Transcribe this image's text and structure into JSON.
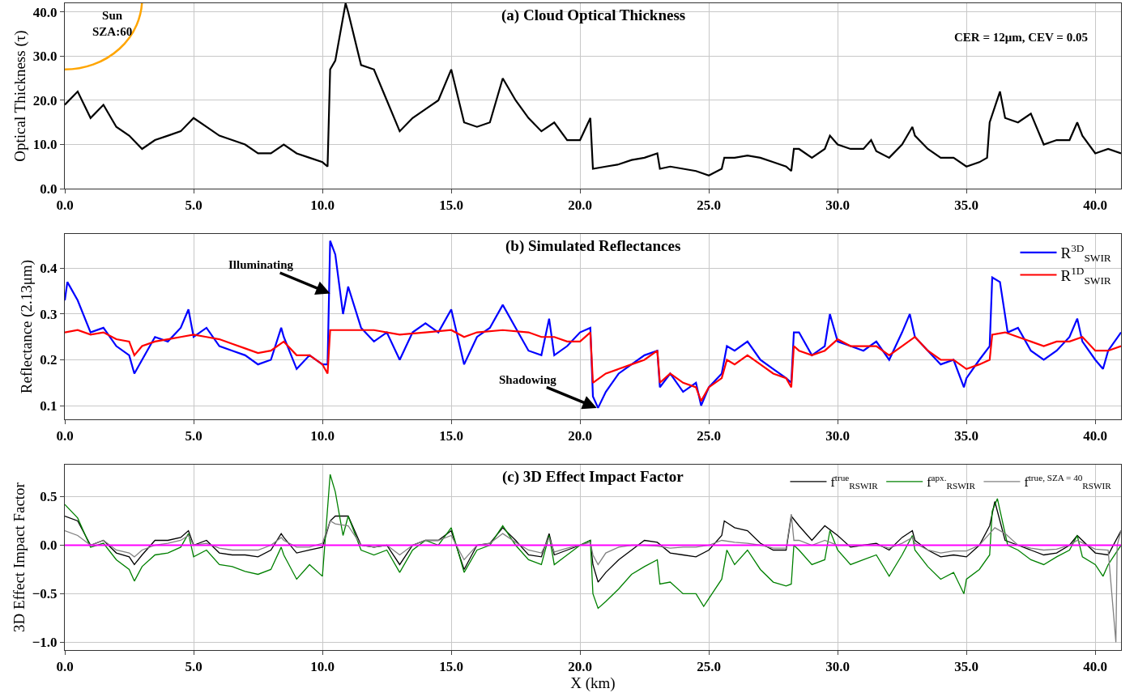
{
  "chart_data": [
    {
      "type": "line",
      "title": "(a) Cloud Optical Thickness",
      "ylabel": "Optical Thickness (τ)",
      "annotations": [
        "Sun\nSZA:60",
        "CER = 12μm, CEV = 0.05"
      ],
      "grid": true,
      "xlim": [
        0,
        41
      ],
      "xticks": [
        {
          "value": 0,
          "label": "0.0"
        },
        {
          "value": 5,
          "label": "5.0"
        },
        {
          "value": 10,
          "label": "10.0"
        },
        {
          "value": 15,
          "label": "15.0"
        },
        {
          "value": 20,
          "label": "20.0"
        },
        {
          "value": 25,
          "label": "25.0"
        },
        {
          "value": 30,
          "label": "30.0"
        },
        {
          "value": 35,
          "label": "35.0"
        },
        {
          "value": 40,
          "label": "40.0"
        }
      ],
      "ylim": [
        0,
        42
      ],
      "yticks": [
        {
          "value": 0,
          "label": "0.0"
        },
        {
          "value": 10,
          "label": "10.0"
        },
        {
          "value": 20,
          "label": "20.0"
        },
        {
          "value": 30,
          "label": "30.0"
        },
        {
          "value": 40,
          "label": "40.0"
        }
      ],
      "series": [
        {
          "color": "#000000",
          "x": [
            0,
            0.5,
            1,
            1.5,
            2,
            2.5,
            3,
            3.5,
            4,
            4.5,
            5,
            5.5,
            6,
            6.5,
            7,
            7.5,
            8,
            8.5,
            9,
            9.5,
            10,
            10.2,
            10.3,
            10.5,
            10.9,
            11,
            11.5,
            12,
            12.5,
            13,
            13.5,
            14,
            14.5,
            15,
            15.5,
            16,
            16.5,
            17,
            17.5,
            18,
            18.5,
            19,
            19.5,
            20,
            20.4,
            20.5,
            21,
            21.5,
            22,
            22.5,
            23,
            23.1,
            23.5,
            24,
            24.5,
            25,
            25.5,
            25.6,
            26,
            26.5,
            27,
            27.5,
            28,
            28.2,
            28.3,
            28.5,
            29,
            29.5,
            29.7,
            30,
            30.5,
            31,
            31.3,
            31.5,
            32,
            32.5,
            32.9,
            33,
            33.5,
            34,
            34.5,
            35,
            35.5,
            35.8,
            35.9,
            36.3,
            36.5,
            37,
            37.5,
            38,
            38.5,
            39,
            39.3,
            39.5,
            40,
            40.5,
            41
          ],
          "values": [
            19,
            22,
            16,
            19,
            14,
            12,
            9,
            11,
            12,
            13,
            16,
            14,
            12,
            11,
            10,
            8,
            8,
            10,
            8,
            7,
            6,
            5,
            27,
            29,
            42,
            40,
            28,
            27,
            20,
            13,
            16,
            18,
            20,
            27,
            15,
            14,
            15,
            25,
            20,
            16,
            13,
            15,
            11,
            11,
            16,
            4.5,
            5,
            5.5,
            6.5,
            7,
            8,
            4.5,
            5,
            4.5,
            4,
            3,
            4.5,
            7,
            7,
            7.5,
            7,
            6,
            5,
            4,
            9,
            9,
            7,
            9,
            12,
            10,
            9,
            9,
            11,
            8.5,
            7,
            10,
            14,
            12,
            9,
            7,
            7,
            5,
            6,
            7,
            15,
            22,
            16,
            15,
            17,
            10,
            11,
            11,
            15,
            12,
            8,
            9,
            8
          ]
        }
      ]
    },
    {
      "type": "line",
      "title": "(b) Simulated Reflectances",
      "ylabel": "Reflectance (2.13μm)",
      "legend": "top right",
      "grid": true,
      "annotations": [
        {
          "text": "Illuminating",
          "x": 10.3,
          "y": 0.345
        },
        {
          "text": "Shadowing",
          "x": 20.65,
          "y": 0.095
        }
      ],
      "xlim": [
        0,
        41
      ],
      "xticks": [
        {
          "value": 0,
          "label": "0.0"
        },
        {
          "value": 5,
          "label": "5.0"
        },
        {
          "value": 10,
          "label": "10.0"
        },
        {
          "value": 15,
          "label": "15.0"
        },
        {
          "value": 20,
          "label": "20.0"
        },
        {
          "value": 25,
          "label": "25.0"
        },
        {
          "value": 30,
          "label": "30.0"
        },
        {
          "value": 35,
          "label": "35.0"
        },
        {
          "value": 40,
          "label": "40.0"
        }
      ],
      "ylim": [
        0.07,
        0.475
      ],
      "yticks": [
        0.1,
        0.2,
        0.3,
        0.4
      ],
      "series": [
        {
          "name": "R$^{3D}$$_{SWIR}$",
          "color": "#0000ff",
          "x": [
            0,
            0.1,
            0.5,
            1,
            1.5,
            2,
            2.5,
            2.7,
            3,
            3.5,
            4,
            4.5,
            4.8,
            5,
            5.5,
            6,
            6.5,
            7,
            7.5,
            8,
            8.4,
            8.5,
            9,
            9.5,
            10,
            10.2,
            10.3,
            10.5,
            10.8,
            11,
            11.5,
            12,
            12.5,
            13,
            13.5,
            14,
            14.5,
            15,
            15.5,
            16,
            16.5,
            17,
            17.5,
            18,
            18.5,
            18.8,
            19,
            19.5,
            20,
            20.4,
            20.5,
            20.7,
            21,
            21.5,
            22,
            22.5,
            23,
            23.1,
            23.5,
            24,
            24.5,
            24.7,
            25,
            25.5,
            25.7,
            26,
            26.5,
            27,
            27.5,
            28,
            28.2,
            28.3,
            28.5,
            29,
            29.5,
            29.7,
            30,
            30.5,
            31,
            31.5,
            32,
            32.5,
            32.8,
            33,
            33.5,
            34,
            34.5,
            34.9,
            35,
            35.5,
            35.9,
            36,
            36.3,
            36.6,
            37,
            37.5,
            38,
            38.5,
            39,
            39.3,
            39.5,
            40,
            40.3,
            40.5,
            41
          ],
          "values": [
            0.33,
            0.37,
            0.33,
            0.26,
            0.27,
            0.23,
            0.21,
            0.17,
            0.2,
            0.25,
            0.24,
            0.27,
            0.31,
            0.25,
            0.27,
            0.23,
            0.22,
            0.21,
            0.19,
            0.2,
            0.27,
            0.25,
            0.18,
            0.21,
            0.19,
            0.19,
            0.46,
            0.43,
            0.3,
            0.36,
            0.27,
            0.24,
            0.26,
            0.2,
            0.26,
            0.28,
            0.26,
            0.31,
            0.19,
            0.25,
            0.27,
            0.32,
            0.27,
            0.22,
            0.21,
            0.29,
            0.21,
            0.23,
            0.26,
            0.27,
            0.12,
            0.095,
            0.13,
            0.17,
            0.19,
            0.21,
            0.22,
            0.14,
            0.17,
            0.13,
            0.15,
            0.1,
            0.14,
            0.17,
            0.23,
            0.22,
            0.24,
            0.2,
            0.18,
            0.16,
            0.15,
            0.26,
            0.26,
            0.21,
            0.23,
            0.3,
            0.24,
            0.23,
            0.22,
            0.24,
            0.2,
            0.26,
            0.3,
            0.25,
            0.22,
            0.19,
            0.2,
            0.14,
            0.16,
            0.2,
            0.23,
            0.38,
            0.37,
            0.26,
            0.27,
            0.22,
            0.2,
            0.22,
            0.25,
            0.29,
            0.24,
            0.2,
            0.18,
            0.22,
            0.26
          ]
        },
        {
          "name": "R$^{1D}$$_{SWIR}$",
          "color": "#ff0000",
          "x": [
            0,
            0.5,
            1,
            1.5,
            2,
            2.5,
            2.7,
            3,
            3.5,
            4,
            4.5,
            5,
            5.5,
            6,
            6.5,
            7,
            7.5,
            8,
            8.5,
            9,
            9.5,
            10,
            10.2,
            10.3,
            11,
            12,
            13,
            14,
            15,
            15.5,
            16,
            17,
            18,
            18.5,
            19,
            19.5,
            20,
            20.4,
            20.5,
            21,
            21.5,
            22,
            22.5,
            23,
            23.1,
            23.5,
            24,
            24.5,
            24.7,
            25,
            25.5,
            25.7,
            26,
            26.5,
            27,
            27.5,
            28,
            28.2,
            28.3,
            28.5,
            29,
            29.5,
            30,
            30.5,
            31,
            31.5,
            32,
            32.5,
            33,
            33.5,
            34,
            34.5,
            35,
            35.5,
            35.9,
            36,
            36.5,
            37,
            37.5,
            38,
            38.5,
            39,
            39.5,
            40,
            40.5,
            41
          ],
          "values": [
            0.26,
            0.265,
            0.255,
            0.26,
            0.245,
            0.24,
            0.21,
            0.23,
            0.24,
            0.245,
            0.25,
            0.255,
            0.25,
            0.245,
            0.235,
            0.225,
            0.215,
            0.22,
            0.24,
            0.21,
            0.21,
            0.19,
            0.17,
            0.265,
            0.265,
            0.265,
            0.255,
            0.26,
            0.265,
            0.25,
            0.26,
            0.265,
            0.26,
            0.25,
            0.25,
            0.24,
            0.24,
            0.26,
            0.15,
            0.17,
            0.18,
            0.19,
            0.2,
            0.22,
            0.15,
            0.17,
            0.15,
            0.14,
            0.11,
            0.14,
            0.16,
            0.2,
            0.19,
            0.21,
            0.19,
            0.17,
            0.16,
            0.14,
            0.23,
            0.22,
            0.21,
            0.22,
            0.245,
            0.23,
            0.23,
            0.23,
            0.21,
            0.23,
            0.25,
            0.22,
            0.2,
            0.2,
            0.18,
            0.19,
            0.2,
            0.255,
            0.26,
            0.25,
            0.24,
            0.23,
            0.24,
            0.24,
            0.25,
            0.22,
            0.22,
            0.23
          ]
        }
      ]
    },
    {
      "type": "line",
      "title": "(c) 3D Effect Impact Factor",
      "xlabel": "X (km)",
      "ylabel": "3D Effect Impact Factor",
      "legend": "top right",
      "grid": true,
      "ref_lines": [
        {
          "axis": "y",
          "value": 0,
          "color": "#ff00ff"
        }
      ],
      "xlim": [
        0,
        41
      ],
      "xticks": [
        {
          "value": 0,
          "label": "0.0"
        },
        {
          "value": 5,
          "label": "5.0"
        },
        {
          "value": 10,
          "label": "10.0"
        },
        {
          "value": 15,
          "label": "15.0"
        },
        {
          "value": 20,
          "label": "20.0"
        },
        {
          "value": 25,
          "label": "25.0"
        },
        {
          "value": 30,
          "label": "30.0"
        },
        {
          "value": 35,
          "label": "35.0"
        },
        {
          "value": 40,
          "label": "40.0"
        }
      ],
      "ylim": [
        -1.08,
        0.83
      ],
      "yticks": [
        {
          "value": -1,
          "label": "−1.0"
        },
        {
          "value": -0.5,
          "label": "−0.5"
        },
        {
          "value": 0,
          "label": "0.0"
        },
        {
          "value": 0.5,
          "label": "0.5"
        }
      ],
      "series": [
        {
          "name": "f$^{true}$$_{RSWIR}$",
          "color": "#000000",
          "x": [
            0,
            0.5,
            1,
            1.5,
            2,
            2.5,
            2.7,
            3,
            3.5,
            4,
            4.5,
            4.8,
            5,
            5.5,
            6,
            6.5,
            7,
            7.5,
            8,
            8.4,
            8.5,
            9,
            9.5,
            10,
            10.3,
            10.5,
            11,
            11.5,
            12,
            12.5,
            13,
            13.5,
            14,
            14.5,
            15,
            15.5,
            16,
            16.5,
            17,
            17.5,
            18,
            18.5,
            18.8,
            19,
            19.5,
            20,
            20.4,
            20.5,
            20.7,
            21,
            21.5,
            22,
            22.5,
            23,
            23.5,
            24,
            24.5,
            25,
            25.5,
            25.6,
            26,
            26.5,
            27,
            27.5,
            28,
            28.2,
            28.5,
            29,
            29.5,
            30,
            30.5,
            31,
            31.5,
            32,
            32.5,
            32.9,
            33,
            33.5,
            34,
            34.5,
            35,
            35.5,
            35.9,
            36.1,
            36.5,
            37,
            37.5,
            38,
            38.5,
            39,
            39.3,
            40,
            40.5,
            41
          ],
          "values": [
            0.3,
            0.25,
            0.0,
            0.05,
            -0.08,
            -0.12,
            -0.2,
            -0.1,
            0.05,
            0.05,
            0.08,
            0.15,
            0.0,
            0.05,
            -0.08,
            -0.1,
            -0.1,
            -0.12,
            -0.05,
            0.12,
            0.08,
            -0.08,
            -0.05,
            -0.02,
            0.25,
            0.3,
            0.3,
            0.0,
            -0.02,
            0.0,
            -0.2,
            0.0,
            0.05,
            0.05,
            0.15,
            -0.25,
            0.0,
            0.02,
            0.18,
            0.05,
            -0.1,
            -0.12,
            0.12,
            -0.1,
            -0.05,
            0.0,
            0.05,
            -0.2,
            -0.38,
            -0.28,
            -0.15,
            -0.05,
            0.05,
            0.03,
            -0.08,
            -0.1,
            -0.12,
            -0.05,
            0.1,
            0.25,
            0.18,
            0.15,
            0.02,
            -0.05,
            -0.05,
            0.3,
            0.2,
            0.05,
            0.2,
            0.1,
            -0.02,
            0.0,
            0.02,
            -0.05,
            0.08,
            0.15,
            0.05,
            -0.05,
            -0.12,
            -0.1,
            -0.12,
            0.0,
            0.2,
            0.45,
            0.05,
            0.0,
            -0.05,
            -0.1,
            -0.08,
            0.0,
            0.1,
            -0.08,
            -0.1,
            0.15
          ]
        },
        {
          "name": "f$^{apx.}$$_{RSWIR}$",
          "color": "#008000",
          "x": [
            0,
            0.5,
            1,
            1.5,
            2,
            2.5,
            2.7,
            3,
            3.5,
            4,
            4.5,
            4.8,
            5,
            5.5,
            6,
            6.5,
            7,
            7.5,
            8,
            8.4,
            8.5,
            9,
            9.5,
            10,
            10.3,
            10.5,
            10.8,
            11,
            11.5,
            12,
            12.5,
            13,
            13.5,
            14,
            14.5,
            15,
            15.5,
            16,
            16.5,
            17,
            17.5,
            18,
            18.5,
            18.8,
            19,
            19.5,
            20,
            20.4,
            20.5,
            20.7,
            21,
            21.5,
            22,
            22.5,
            23,
            23.1,
            23.5,
            24,
            24.5,
            24.8,
            25,
            25.5,
            25.7,
            26,
            26.5,
            27,
            27.5,
            28,
            28.2,
            28.3,
            28.5,
            29,
            29.5,
            29.7,
            30,
            30.5,
            31,
            31.5,
            32,
            32.5,
            32.9,
            33,
            33.5,
            34,
            34.5,
            34.9,
            35,
            35.5,
            35.9,
            36,
            36.2,
            36.6,
            37,
            37.5,
            38,
            38.5,
            39,
            39.3,
            39.5,
            40,
            40.3,
            40.5,
            41
          ],
          "values": [
            0.42,
            0.28,
            -0.02,
            0.02,
            -0.15,
            -0.25,
            -0.37,
            -0.22,
            -0.1,
            -0.08,
            -0.02,
            0.12,
            -0.12,
            -0.05,
            -0.2,
            -0.22,
            -0.27,
            -0.3,
            -0.25,
            -0.02,
            -0.1,
            -0.35,
            -0.2,
            -0.32,
            0.73,
            0.55,
            0.1,
            0.3,
            -0.05,
            -0.1,
            -0.05,
            -0.28,
            -0.05,
            0.05,
            0.0,
            0.18,
            -0.28,
            -0.05,
            0.0,
            0.2,
            0.0,
            -0.15,
            -0.2,
            0.1,
            -0.2,
            -0.1,
            0.0,
            0.05,
            -0.5,
            -0.65,
            -0.58,
            -0.45,
            -0.3,
            -0.22,
            -0.15,
            -0.4,
            -0.38,
            -0.5,
            -0.5,
            -0.63,
            -0.55,
            -0.35,
            -0.05,
            -0.2,
            -0.05,
            -0.25,
            -0.38,
            -0.42,
            -0.4,
            0.0,
            -0.05,
            -0.2,
            -0.15,
            0.15,
            -0.05,
            -0.2,
            -0.15,
            -0.1,
            -0.32,
            -0.1,
            0.1,
            -0.05,
            -0.22,
            -0.35,
            -0.28,
            -0.5,
            -0.35,
            -0.25,
            -0.1,
            0.35,
            0.48,
            0.0,
            -0.05,
            -0.15,
            -0.2,
            -0.12,
            -0.05,
            0.1,
            -0.12,
            -0.2,
            -0.32,
            -0.2,
            0.0
          ]
        },
        {
          "name": "f$^{true, SZA = 40}$$_{RSWIR}$",
          "color": "#808080",
          "x": [
            0,
            0.5,
            1,
            1.5,
            2,
            2.5,
            2.7,
            3,
            3.5,
            4,
            4.5,
            4.8,
            5,
            5.5,
            6,
            6.5,
            7,
            7.5,
            8,
            8.4,
            8.5,
            9,
            9.5,
            10,
            10.3,
            10.5,
            11,
            11.5,
            12,
            12.5,
            13,
            13.5,
            14,
            14.5,
            15,
            15.5,
            16,
            16.5,
            17,
            17.5,
            18,
            18.5,
            18.8,
            19,
            19.5,
            20,
            20.4,
            20.5,
            20.7,
            21,
            21.5,
            22,
            22.5,
            23,
            23.5,
            24,
            24.5,
            25,
            25.5,
            26,
            26.5,
            27,
            27.5,
            28,
            28.2,
            28.3,
            28.5,
            29,
            29.5,
            30,
            30.5,
            31,
            31.5,
            32,
            32.5,
            32.9,
            33,
            33.5,
            34,
            34.5,
            35,
            35.5,
            35.9,
            36.1,
            36.5,
            37,
            37.5,
            38,
            38.5,
            39,
            39.3,
            40,
            40.5,
            40.8,
            40.85,
            41
          ],
          "values": [
            0.15,
            0.1,
            0.0,
            0.05,
            -0.05,
            -0.08,
            -0.12,
            -0.05,
            0.0,
            0.02,
            0.05,
            0.1,
            0.0,
            0.02,
            -0.03,
            -0.05,
            -0.05,
            -0.05,
            0.0,
            0.08,
            0.05,
            -0.02,
            -0.02,
            0.02,
            0.25,
            0.22,
            0.2,
            0.0,
            -0.02,
            0.0,
            -0.1,
            0.0,
            0.05,
            0.05,
            0.1,
            -0.15,
            0.0,
            0.02,
            0.12,
            0.03,
            -0.05,
            -0.08,
            0.08,
            -0.07,
            -0.03,
            0.0,
            0.03,
            -0.1,
            -0.2,
            -0.08,
            -0.02,
            0.0,
            0.0,
            -0.01,
            -0.03,
            -0.02,
            -0.02,
            0.0,
            0.05,
            0.03,
            0.02,
            0.0,
            -0.03,
            -0.03,
            0.32,
            0.05,
            0.05,
            0.0,
            0.05,
            0.0,
            0.0,
            0.0,
            0.0,
            -0.03,
            0.02,
            0.08,
            0.02,
            -0.05,
            -0.08,
            -0.06,
            -0.06,
            0.0,
            0.12,
            0.18,
            0.12,
            0.0,
            -0.03,
            -0.05,
            -0.04,
            0.0,
            0.05,
            -0.04,
            -0.05,
            -1.0,
            0.0,
            0.15
          ]
        }
      ]
    }
  ]
}
